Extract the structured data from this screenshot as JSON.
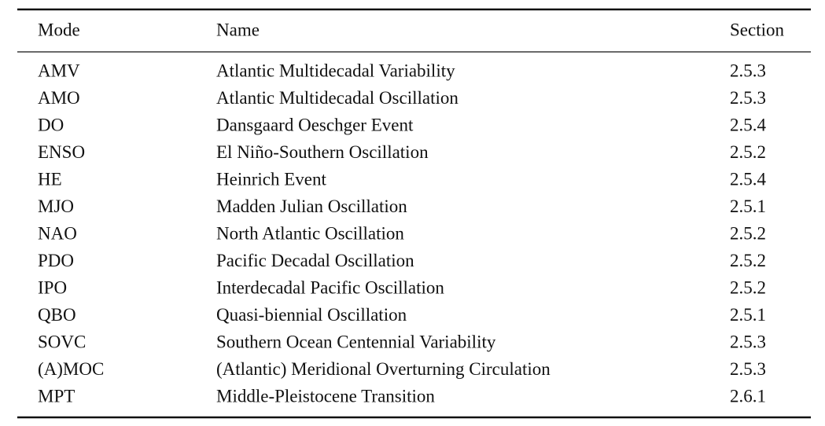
{
  "table": {
    "header": [
      "Mode",
      "Name",
      "Section"
    ],
    "rows": [
      [
        "AMV",
        "Atlantic Multidecadal Variability",
        "2.5.3"
      ],
      [
        "AMO",
        "Atlantic Multidecadal Oscillation",
        "2.5.3"
      ],
      [
        "DO",
        "Dansgaard Oeschger Event",
        "2.5.4"
      ],
      [
        "ENSO",
        "El Niño-Southern Oscillation",
        "2.5.2"
      ],
      [
        "HE",
        "Heinrich Event",
        "2.5.4"
      ],
      [
        "MJO",
        "Madden Julian Oscillation",
        "2.5.1"
      ],
      [
        "NAO",
        "North Atlantic Oscillation",
        "2.5.2"
      ],
      [
        "PDO",
        "Pacific Decadal Oscillation",
        "2.5.2"
      ],
      [
        "IPO",
        "Interdecadal Pacific Oscillation",
        "2.5.2"
      ],
      [
        "QBO",
        "Quasi-biennial Oscillation",
        "2.5.1"
      ],
      [
        "SOVC",
        "Southern Ocean Centennial Variability",
        "2.5.3"
      ],
      [
        "(A)MOC",
        "(Atlantic) Meridional Overturning Circulation",
        "2.5.3"
      ],
      [
        "MPT",
        "Middle-Pleistocene Transition",
        "2.6.1"
      ]
    ]
  }
}
